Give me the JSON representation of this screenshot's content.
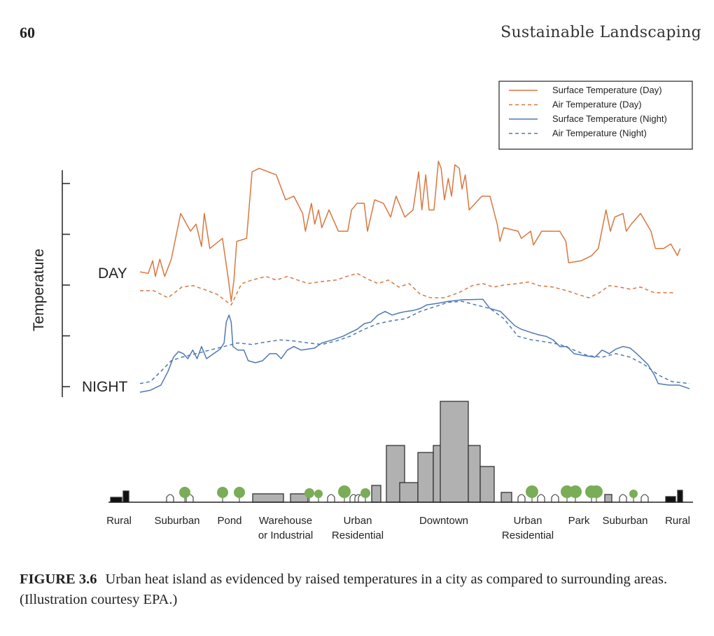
{
  "page": {
    "number": "60",
    "running_head": "Sustainable Landscaping"
  },
  "caption": {
    "label": "FIGURE 3.6",
    "text": "Urban heat island as evidenced by raised temperatures in a city as compared to surrounding areas. (Illustration courtesy EPA.)"
  },
  "chart_data": {
    "type": "line",
    "title": "",
    "ylabel": "Temperature",
    "xlabel": "",
    "xlim": [
      0,
      100
    ],
    "ylim": [
      0,
      40
    ],
    "yticks": [
      0,
      10,
      20,
      30,
      40
    ],
    "grid": false,
    "legend_position": "top-right",
    "annotations": {
      "day": "DAY",
      "night": "NIGHT"
    },
    "colors": {
      "day": "#d9773f",
      "night": "#4f79b3"
    },
    "zones": [
      "Rural",
      "Suburban",
      "Pond",
      "Warehouse or Industrial",
      "Urban Residential",
      "Downtown",
      "Urban Residential",
      "Park",
      "Suburban",
      "Rural"
    ],
    "series": [
      {
        "name": "Surface Temperature (Day)",
        "style": "solid",
        "color": "#d9773f",
        "x": [
          0,
          1.5,
          2.3,
          2.8,
          3.6,
          4.5,
          5.7,
          7.4,
          9.2,
          10.2,
          11.2,
          11.7,
          12.7,
          15.0,
          16.1,
          16.6,
          17.1,
          17.6,
          19.4,
          20.4,
          21.7,
          24.8,
          26.5,
          28.0,
          29.6,
          30.1,
          31.2,
          31.8,
          32.5,
          33.1,
          34.4,
          36.1,
          37.8,
          38.5,
          39.5,
          40.8,
          41.4,
          42.7,
          44.3,
          45.6,
          46.6,
          48.2,
          49.7,
          50.7,
          51.3,
          52.0,
          52.6,
          53.5,
          54.3,
          54.8,
          55.4,
          56.1,
          56.7,
          57.3,
          58.1,
          58.6,
          59.2,
          59.9,
          62.2,
          63.7,
          65.0,
          65.5,
          66.2,
          68.8,
          69.4,
          71.1,
          71.6,
          73.1,
          76.4,
          77.5,
          78.0,
          80.3,
          82.2,
          83.4,
          84.8,
          85.6,
          86.4,
          87.9,
          88.5,
          89.4,
          91.1,
          93.0,
          93.8,
          95.3,
          96.6,
          97.8,
          98.3
        ],
        "y": [
          22.6,
          22.3,
          24.8,
          21.7,
          25.1,
          21.7,
          25.1,
          34.1,
          30.6,
          32.0,
          27.6,
          34.1,
          27.2,
          29.2,
          21.0,
          16.8,
          21.0,
          28.6,
          29.2,
          42.3,
          43.0,
          41.7,
          36.8,
          37.5,
          34.1,
          30.6,
          36.1,
          32.0,
          34.8,
          31.3,
          34.8,
          30.6,
          30.6,
          34.8,
          36.1,
          36.1,
          30.6,
          36.8,
          36.1,
          33.4,
          37.5,
          33.4,
          34.8,
          42.3,
          34.8,
          41.7,
          34.8,
          34.8,
          44.4,
          43.0,
          36.8,
          41.0,
          37.5,
          43.7,
          43.0,
          38.9,
          41.7,
          34.8,
          37.5,
          37.5,
          32.0,
          28.6,
          31.3,
          30.6,
          29.2,
          30.6,
          27.9,
          30.6,
          30.6,
          28.6,
          24.4,
          24.8,
          25.8,
          27.2,
          34.8,
          30.6,
          33.4,
          34.1,
          30.6,
          32.0,
          34.1,
          30.6,
          27.2,
          27.2,
          28.1,
          25.8,
          27.2
        ]
      },
      {
        "name": "Air Temperature (Day)",
        "style": "dashed",
        "color": "#d9773f",
        "x": [
          0,
          2.5,
          5.1,
          7.6,
          9.6,
          11.5,
          14.0,
          16.6,
          18.5,
          20.4,
          22.9,
          24.8,
          26.8,
          28.7,
          30.6,
          33.1,
          35.7,
          37.6,
          39.5,
          41.4,
          43.3,
          45.2,
          47.1,
          49.0,
          51.0,
          52.9,
          55.4,
          58.0,
          60.5,
          62.4,
          64.3,
          66.2,
          68.8,
          70.7,
          72.6,
          75.2,
          77.7,
          79.6,
          81.7,
          83.6,
          85.4,
          87.3,
          89.2,
          91.1,
          93.6,
          97.5
        ],
        "y": [
          18.9,
          18.9,
          17.5,
          19.6,
          19.9,
          19.2,
          18.2,
          16.1,
          20.3,
          21.0,
          21.7,
          21.0,
          21.7,
          21.0,
          20.3,
          20.7,
          21.0,
          21.7,
          22.3,
          21.2,
          20.3,
          21.0,
          19.6,
          20.3,
          18.2,
          17.5,
          17.5,
          18.5,
          19.9,
          20.3,
          19.6,
          20.0,
          20.3,
          20.6,
          19.9,
          19.6,
          18.9,
          18.2,
          17.5,
          18.5,
          19.9,
          19.6,
          19.2,
          19.6,
          18.5,
          18.5
        ]
      },
      {
        "name": "Surface Temperature (Night)",
        "style": "solid",
        "color": "#4f79b3",
        "x": [
          0,
          1.9,
          3.8,
          5.1,
          6.1,
          7.0,
          7.9,
          8.7,
          9.6,
          10.4,
          11.2,
          12.1,
          13.4,
          14.6,
          15.3,
          15.7,
          16.2,
          16.6,
          16.9,
          17.8,
          18.9,
          19.7,
          21.0,
          22.3,
          23.6,
          24.8,
          25.7,
          26.8,
          28.0,
          29.3,
          30.6,
          31.8,
          33.1,
          35.0,
          36.9,
          38.2,
          39.5,
          40.8,
          42.0,
          43.3,
          44.6,
          45.9,
          47.1,
          48.4,
          49.7,
          51.0,
          52.2,
          54.1,
          56.1,
          58.6,
          62.4,
          63.7,
          65.6,
          66.9,
          68.2,
          69.4,
          71.3,
          72.6,
          73.9,
          75.2,
          76.4,
          77.7,
          79.0,
          80.9,
          82.8,
          84.1,
          85.4,
          86.6,
          87.9,
          89.2,
          90.4,
          92.4,
          93.6,
          94.3,
          96.2,
          98.1,
          100
        ],
        "y": [
          -1.1,
          -0.7,
          0.3,
          3.0,
          5.8,
          6.9,
          6.5,
          5.5,
          7.2,
          5.5,
          7.9,
          5.5,
          6.5,
          7.4,
          8.6,
          12.7,
          14.1,
          12.7,
          7.9,
          7.2,
          7.2,
          5.1,
          4.7,
          5.1,
          6.5,
          6.5,
          5.5,
          7.2,
          7.9,
          7.2,
          7.4,
          7.6,
          8.6,
          9.2,
          9.9,
          10.6,
          11.3,
          12.4,
          12.7,
          14.1,
          14.8,
          14.1,
          14.5,
          14.8,
          15.0,
          15.4,
          16.1,
          16.4,
          16.8,
          17.1,
          17.2,
          15.4,
          14.8,
          13.4,
          12.0,
          11.3,
          10.6,
          10.2,
          9.9,
          9.2,
          7.9,
          7.9,
          6.5,
          6.1,
          5.8,
          7.2,
          6.5,
          7.4,
          7.9,
          7.6,
          6.5,
          4.4,
          2.3,
          0.6,
          0.3,
          0.3,
          -0.4
        ]
      },
      {
        "name": "Air Temperature (Night)",
        "style": "dashed",
        "color": "#4f79b3",
        "x": [
          0,
          1.9,
          3.8,
          5.7,
          7.6,
          10.2,
          12.7,
          15.3,
          17.8,
          20.4,
          22.9,
          25.5,
          28.0,
          30.6,
          33.1,
          35.7,
          38.2,
          40.8,
          43.3,
          45.9,
          48.4,
          51.0,
          53.5,
          56.1,
          58.6,
          61.1,
          63.7,
          66.2,
          68.8,
          71.3,
          73.9,
          76.4,
          79.0,
          81.5,
          84.1,
          86.6,
          89.2,
          91.7,
          94.3,
          96.8,
          100
        ],
        "y": [
          0.6,
          1.0,
          3.0,
          5.1,
          5.8,
          6.5,
          7.2,
          7.9,
          8.6,
          8.3,
          8.8,
          9.2,
          9.0,
          8.6,
          8.3,
          9.0,
          9.9,
          11.3,
          12.4,
          13.0,
          13.4,
          14.8,
          15.7,
          16.6,
          16.8,
          16.1,
          15.4,
          13.4,
          9.9,
          9.2,
          8.8,
          8.3,
          7.2,
          6.1,
          5.8,
          6.5,
          5.8,
          4.4,
          2.3,
          1.0,
          0.6
        ]
      }
    ]
  }
}
